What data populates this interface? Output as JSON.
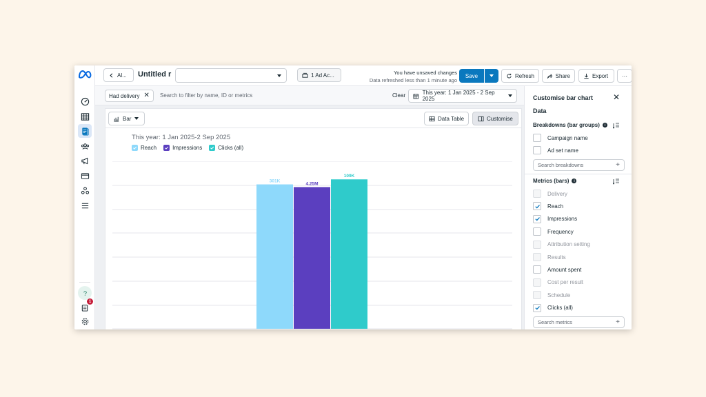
{
  "topbar": {
    "back_label": "Al...",
    "report_title": "Untitled r",
    "account_label": "1 Ad Ac...",
    "status_line1": "You have unsaved changes",
    "status_line2": "Data refreshed less than 1 minute ago",
    "save_label": "Save",
    "refresh_label": "Refresh",
    "share_label": "Share",
    "export_label": "Export",
    "more_label": "···"
  },
  "rail": {
    "icons": [
      "dashboard-icon",
      "table-icon",
      "reports-icon",
      "audience-icon",
      "megaphone-icon",
      "billing-icon",
      "network-icon",
      "menu-icon"
    ],
    "bottom_icons": [
      "help-icon",
      "notifications-icon",
      "settings-icon"
    ],
    "notification_count": "1"
  },
  "filterbar": {
    "chip_label": "Had delivery",
    "search_placeholder": "Search to filter by name, ID or metrics",
    "clear_label": "Clear",
    "date_range_label": "This year: 1 Jan 2025 - 2 Sep 2025"
  },
  "card": {
    "visualization_label": "Bar",
    "data_table_label": "Data Table",
    "customise_label": "Customise"
  },
  "chart_data": {
    "type": "bar",
    "title": "This year: 1 Jan 2025-2 Sep 2025",
    "categories": [
      ""
    ],
    "series": [
      {
        "name": "Reach",
        "values": [
          301000
        ],
        "label": "301K",
        "color": "#8ed9fb"
      },
      {
        "name": "Impressions",
        "values": [
          4250000
        ],
        "label": "4.25M",
        "color": "#5b3fbf"
      },
      {
        "name": "Clicks (all)",
        "values": [
          109000
        ],
        "label": "109K",
        "color": "#2fcbcb"
      }
    ],
    "note_per_series_scale": true,
    "grid": true,
    "legend_position": "top-left"
  },
  "panel": {
    "title": "Customise bar chart",
    "data_heading": "Data",
    "breakdowns_title": "Breakdowns (bar groups)",
    "breakdowns": [
      {
        "label": "Campaign name",
        "checked": false,
        "disabled": false
      },
      {
        "label": "Ad set name",
        "checked": false,
        "disabled": false
      }
    ],
    "breakdowns_search": "Search breakdowns",
    "metrics_title": "Metrics (bars)",
    "metrics": [
      {
        "label": "Delivery",
        "checked": false,
        "disabled": true
      },
      {
        "label": "Reach",
        "checked": true,
        "disabled": false
      },
      {
        "label": "Impressions",
        "checked": true,
        "disabled": false
      },
      {
        "label": "Frequency",
        "checked": false,
        "disabled": false
      },
      {
        "label": "Attribution setting",
        "checked": false,
        "disabled": true
      },
      {
        "label": "Results",
        "checked": false,
        "disabled": true
      },
      {
        "label": "Amount spent",
        "checked": false,
        "disabled": false
      },
      {
        "label": "Cost per result",
        "checked": false,
        "disabled": true
      },
      {
        "label": "Schedule",
        "checked": false,
        "disabled": true
      },
      {
        "label": "Clicks (all)",
        "checked": true,
        "disabled": false
      }
    ],
    "metrics_search": "Search metrics"
  },
  "colors": {
    "accent": "#0a78be",
    "reach": "#8ed9fb",
    "impressions": "#5b3fbf",
    "clicks": "#2fcbcb"
  }
}
